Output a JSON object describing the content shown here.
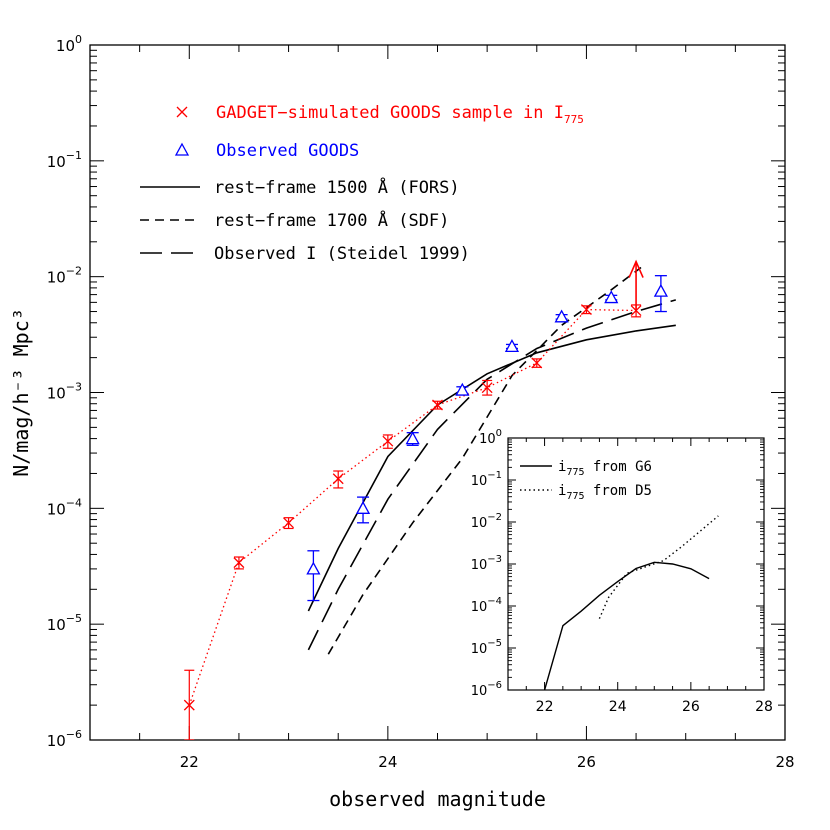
{
  "chart_data": [
    {
      "type": "line",
      "xlabel": "observed magnitude",
      "ylabel": "N/mag/h⁻³ Mpc³",
      "xlim": [
        21,
        28
      ],
      "ylim_log10": [
        -6,
        0
      ],
      "x_ticks": [
        "22",
        "24",
        "26",
        "28"
      ],
      "y_ticks": [
        {
          "base": "10",
          "exp": "0"
        },
        {
          "base": "10",
          "exp": "−1"
        },
        {
          "base": "10",
          "exp": "−2"
        },
        {
          "base": "10",
          "exp": "−3"
        },
        {
          "base": "10",
          "exp": "−4"
        },
        {
          "base": "10",
          "exp": "−5"
        },
        {
          "base": "10",
          "exp": "−6"
        }
      ],
      "legend": {
        "placement": "top-left",
        "entries": [
          {
            "label": "GADGET−simulated GOODS sample in I",
            "sub": "775",
            "color": "#ff0000",
            "marker": "cross"
          },
          {
            "label": "Observed GOODS",
            "sub": "",
            "color": "#0000ff",
            "marker": "triangle"
          },
          {
            "label": "rest−frame 1500 Å (FORS)",
            "sub": "",
            "color": "#000000",
            "style": "solid"
          },
          {
            "label": "rest−frame 1700 Å (SDF)",
            "sub": "",
            "color": "#000000",
            "style": "dashed"
          },
          {
            "label": "Observed I (Steidel 1999)",
            "sub": "",
            "color": "#000000",
            "style": "longdash"
          }
        ]
      },
      "series": [
        {
          "name": "GADGET−simulated GOODS sample in I775",
          "kind": "points-dotted",
          "color": "#ff0000",
          "x": [
            22.0,
            22.5,
            23.0,
            23.5,
            24.0,
            24.5,
            25.0,
            25.5,
            26.0,
            26.5
          ],
          "y": [
            2e-06,
            3.4e-05,
            7.5e-05,
            0.00018,
            0.00038,
            0.00078,
            0.0011,
            0.0018,
            0.0052,
            0.0051
          ],
          "err_low": [
            1e-06,
            3e-05,
            6.7e-05,
            0.00015,
            0.00033,
            0.00072,
            0.00095,
            0.00165,
            0.0048,
            0.0045
          ],
          "err_high": [
            4e-06,
            3.8e-05,
            8.3e-05,
            0.00021,
            0.00043,
            0.00084,
            0.00127,
            0.00195,
            0.0056,
            0.0057
          ],
          "arrow": {
            "x": 26.5,
            "from": 0.0051,
            "to": 0.0135
          }
        },
        {
          "name": "Observed GOODS",
          "kind": "points",
          "color": "#0000ff",
          "x": [
            23.25,
            23.75,
            24.25,
            24.75,
            25.25,
            25.75,
            26.25,
            26.75
          ],
          "y": [
            3e-05,
            0.0001,
            0.0004,
            0.00105,
            0.0025,
            0.0045,
            0.0066,
            0.0075
          ],
          "err_low": [
            1.6e-05,
            7.5e-05,
            0.00035,
            0.00098,
            0.0024,
            0.0043,
            0.0063,
            0.005
          ],
          "err_high": [
            4.3e-05,
            0.000125,
            0.00045,
            0.00112,
            0.0026,
            0.0047,
            0.0069,
            0.0102
          ]
        },
        {
          "name": "rest−frame 1500 Å (FORS)",
          "kind": "line",
          "style": "solid",
          "color": "#000000",
          "x": [
            23.2,
            23.5,
            24.0,
            24.5,
            25.0,
            25.5,
            26.0,
            26.5,
            26.9
          ],
          "y": [
            1.3e-05,
            4.5e-05,
            0.00028,
            0.00078,
            0.00145,
            0.0022,
            0.00285,
            0.0034,
            0.0038
          ]
        },
        {
          "name": "rest−frame 1700 Å (SDF)",
          "kind": "line",
          "style": "dashed",
          "color": "#000000",
          "x": [
            23.4,
            23.75,
            24.25,
            24.75,
            25.25,
            25.75,
            26.25,
            26.55
          ],
          "y": [
            5.5e-06,
            1.8e-05,
            7.5e-05,
            0.00027,
            0.0014,
            0.0038,
            0.0077,
            0.012
          ]
        },
        {
          "name": "Observed I (Steidel 1999)",
          "kind": "line",
          "style": "longdash",
          "color": "#000000",
          "x": [
            23.2,
            23.5,
            24.0,
            24.5,
            25.0,
            25.5,
            26.0,
            26.5,
            26.9
          ],
          "y": [
            6e-06,
            2e-05,
            0.00012,
            0.00048,
            0.0013,
            0.0024,
            0.0036,
            0.005,
            0.0063
          ]
        }
      ]
    },
    {
      "type": "line",
      "placement": "inset-bottom-right",
      "xlim": [
        21,
        28
      ],
      "ylim_log10": [
        -6,
        0
      ],
      "x_ticks": [
        "22",
        "24",
        "26",
        "28"
      ],
      "y_ticks": [
        {
          "base": "10",
          "exp": "0"
        },
        {
          "base": "10",
          "exp": "−1"
        },
        {
          "base": "10",
          "exp": "−2"
        },
        {
          "base": "10",
          "exp": "−3"
        },
        {
          "base": "10",
          "exp": "−4"
        },
        {
          "base": "10",
          "exp": "−5"
        },
        {
          "base": "10",
          "exp": "−6"
        }
      ],
      "legend": {
        "placement": "top-left",
        "entries": [
          {
            "label": "i",
            "sub": "775",
            "suffix": " from G6",
            "style": "solid"
          },
          {
            "label": "i",
            "sub": "775",
            "suffix": " from D5",
            "style": "dotted"
          }
        ]
      },
      "series": [
        {
          "name": "i775 from G6",
          "style": "solid",
          "color": "#000000",
          "x": [
            22.0,
            22.5,
            23.0,
            23.5,
            24.0,
            24.5,
            25.0,
            25.5,
            26.0,
            26.5
          ],
          "y": [
            1e-06,
            3.4e-05,
            7.5e-05,
            0.00018,
            0.00038,
            0.00078,
            0.0011,
            0.001,
            0.00077,
            0.00045
          ]
        },
        {
          "name": "i775 from D5",
          "style": "dotted",
          "color": "#000000",
          "x": [
            23.5,
            23.75,
            24.25,
            24.75,
            25.25,
            25.75,
            26.25,
            26.75
          ],
          "y": [
            5e-05,
            0.00016,
            0.0006,
            0.00085,
            0.0012,
            0.0026,
            0.006,
            0.014
          ]
        }
      ]
    }
  ]
}
